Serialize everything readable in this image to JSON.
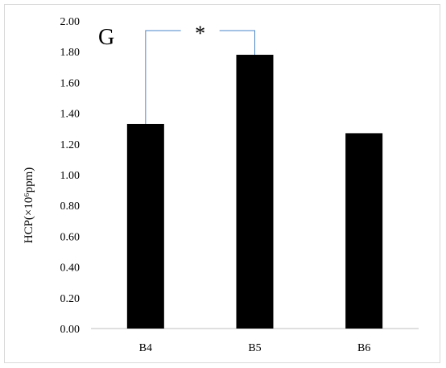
{
  "chart_data": {
    "type": "bar",
    "panel_label": "G",
    "categories": [
      "B4",
      "B5",
      "B6"
    ],
    "values": [
      1.33,
      1.78,
      1.27
    ],
    "ylabel": "HCP(×10⁶ppm)",
    "ylim": [
      0,
      2.0
    ],
    "yticks": [
      "0.00",
      "0.20",
      "0.40",
      "0.60",
      "0.80",
      "1.00",
      "1.20",
      "1.40",
      "1.60",
      "1.80",
      "2.00"
    ],
    "significance": {
      "between": [
        "B4",
        "B5"
      ],
      "symbol": "*"
    },
    "bar_color": "#000000",
    "bracket_color": "#4a86c8",
    "grid": false
  }
}
